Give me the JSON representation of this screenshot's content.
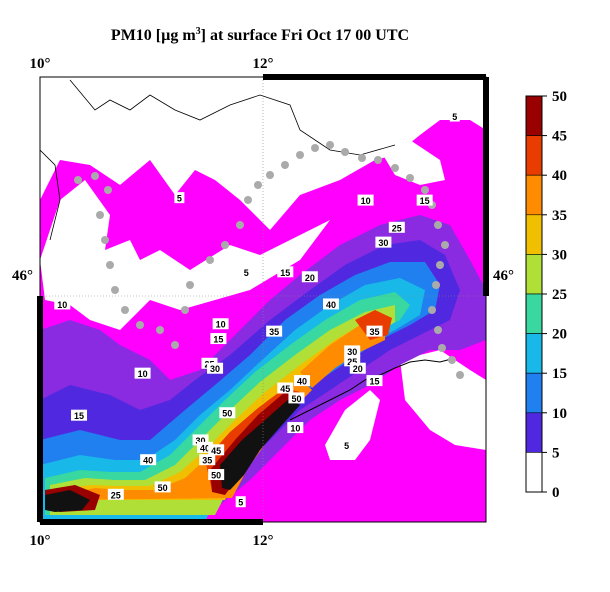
{
  "map": {
    "title_main": "PM10 [µg m",
    "title_sup": "3",
    "title_rest": "] at surface Fri Oct 17 00 UTC",
    "lon_labels": [
      {
        "text": "10°",
        "lon": 10
      },
      {
        "text": "12°",
        "lon": 12
      }
    ],
    "lat_labels": [
      {
        "text": "46°",
        "lat": 46
      }
    ],
    "contour_labels": [
      {
        "text": "5",
        "lon": 13.72,
        "lat": 46.64
      },
      {
        "text": "5",
        "lon": 11.25,
        "lat": 46.31
      },
      {
        "text": "5",
        "lon": 11.85,
        "lat": 46.01
      },
      {
        "text": "10",
        "lon": 12.92,
        "lat": 46.3
      },
      {
        "text": "15",
        "lon": 13.45,
        "lat": 46.3
      },
      {
        "text": "25",
        "lon": 13.2,
        "lat": 46.19
      },
      {
        "text": "30",
        "lon": 13.08,
        "lat": 46.13
      },
      {
        "text": "15",
        "lon": 12.2,
        "lat": 46.01
      },
      {
        "text": "20",
        "lon": 12.42,
        "lat": 45.99
      },
      {
        "text": "40",
        "lon": 12.61,
        "lat": 45.88
      },
      {
        "text": "10",
        "lon": 10.2,
        "lat": 45.88
      },
      {
        "text": "10",
        "lon": 11.62,
        "lat": 45.8
      },
      {
        "text": "35",
        "lon": 12.1,
        "lat": 45.77
      },
      {
        "text": "35",
        "lon": 13.0,
        "lat": 45.77
      },
      {
        "text": "15",
        "lon": 11.6,
        "lat": 45.74
      },
      {
        "text": "30",
        "lon": 12.8,
        "lat": 45.69
      },
      {
        "text": "25",
        "lon": 12.8,
        "lat": 45.65
      },
      {
        "text": "20",
        "lon": 12.85,
        "lat": 45.62
      },
      {
        "text": "25",
        "lon": 11.52,
        "lat": 45.64
      },
      {
        "text": "30",
        "lon": 11.57,
        "lat": 45.62
      },
      {
        "text": "10",
        "lon": 10.92,
        "lat": 45.6
      },
      {
        "text": "40",
        "lon": 12.35,
        "lat": 45.57
      },
      {
        "text": "15",
        "lon": 13.0,
        "lat": 45.57
      },
      {
        "text": "45",
        "lon": 12.2,
        "lat": 45.54
      },
      {
        "text": "50",
        "lon": 12.3,
        "lat": 45.5
      },
      {
        "text": "15",
        "lon": 10.35,
        "lat": 45.43
      },
      {
        "text": "50",
        "lon": 11.68,
        "lat": 45.44
      },
      {
        "text": "10",
        "lon": 12.29,
        "lat": 45.38
      },
      {
        "text": "30",
        "lon": 11.44,
        "lat": 45.33
      },
      {
        "text": "40",
        "lon": 11.48,
        "lat": 45.3
      },
      {
        "text": "45",
        "lon": 11.58,
        "lat": 45.29
      },
      {
        "text": "5",
        "lon": 12.75,
        "lat": 45.31
      },
      {
        "text": "35",
        "lon": 11.5,
        "lat": 45.25
      },
      {
        "text": "40",
        "lon": 10.97,
        "lat": 45.25
      },
      {
        "text": "50",
        "lon": 11.58,
        "lat": 45.19
      },
      {
        "text": "50",
        "lon": 11.1,
        "lat": 45.14
      },
      {
        "text": "25",
        "lon": 10.68,
        "lat": 45.11
      },
      {
        "text": "5",
        "lon": 11.8,
        "lat": 45.08
      }
    ],
    "colorbar": {
      "ticks": [
        "50",
        "45",
        "40",
        "35",
        "30",
        "25",
        "20",
        "15",
        "10",
        "5",
        "0"
      ],
      "colors": [
        "#990000",
        "#e83c00",
        "#ff8c00",
        "#f0c000",
        "#b0e038",
        "#38d8a0",
        "#18b8e8",
        "#2080f0",
        "#5028e0",
        "#8a2be2",
        "#ff00ff",
        "#ffffff"
      ]
    },
    "lon_range": [
      10,
      14
    ],
    "lat_range": [
      45.0,
      46.8
    ]
  }
}
